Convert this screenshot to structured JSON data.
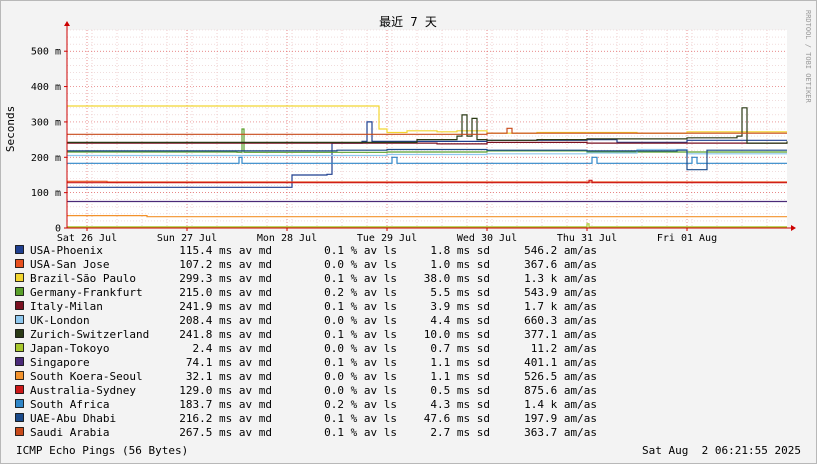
{
  "chart_data": {
    "type": "line",
    "title": "最近 7 天",
    "ylabel": "Seconds",
    "watermark": "RRDTOOL / TOBI OETIKER",
    "ylim": [
      0,
      0.56
    ],
    "yticks": [
      {
        "v": 0,
        "label": "0"
      },
      {
        "v": 0.1,
        "label": "100 m"
      },
      {
        "v": 0.2,
        "label": "200 m"
      },
      {
        "v": 0.3,
        "label": "300 m"
      },
      {
        "v": 0.4,
        "label": "400 m"
      },
      {
        "v": 0.5,
        "label": "500 m"
      }
    ],
    "xlim": [
      -0.2,
      7.0
    ],
    "xticks": [
      {
        "v": 0,
        "label": "Sat 26 Jul"
      },
      {
        "v": 1,
        "label": "Sun 27 Jul"
      },
      {
        "v": 2,
        "label": "Mon 28 Jul"
      },
      {
        "v": 3,
        "label": "Tue 29 Jul"
      },
      {
        "v": 4,
        "label": "Wed 30 Jul"
      },
      {
        "v": 5,
        "label": "Thu 31 Jul"
      },
      {
        "v": 6,
        "label": "Fri 01 Aug"
      }
    ],
    "grid": true,
    "series": [
      {
        "name": "USA-Phoenix",
        "color": "#1f3f8f",
        "avg": "115.4 ms av md",
        "loss": "0.1 % av ls",
        "sd": "1.8 ms sd",
        "am": "546.2   am/as",
        "points": [
          [
            -0.2,
            0.115
          ],
          [
            2.0,
            0.115
          ],
          [
            2.05,
            0.15
          ],
          [
            2.4,
            0.152
          ],
          [
            2.45,
            0.24
          ],
          [
            2.75,
            0.245
          ],
          [
            2.8,
            0.3
          ],
          [
            2.85,
            0.245
          ],
          [
            4.0,
            0.248
          ],
          [
            5.0,
            0.25
          ],
          [
            5.3,
            0.242
          ],
          [
            6.0,
            0.248
          ],
          [
            7.0,
            0.248
          ]
        ]
      },
      {
        "name": "USA-San Jose",
        "color": "#e8501e",
        "avg": "107.2 ms av md",
        "loss": "0.0 % av ls",
        "sd": "1.0 ms sd",
        "am": "367.6   am/as",
        "points": [
          [
            -0.2,
            0.132
          ],
          [
            0.2,
            0.13
          ],
          [
            7.0,
            0.13
          ]
        ]
      },
      {
        "name": "Brazil-São Paulo",
        "color": "#f2d530",
        "avg": "299.3 ms av md",
        "loss": "0.1 % av ls",
        "sd": "38.0 ms sd",
        "am": "1.3 k am/as",
        "points": [
          [
            -0.2,
            0.345
          ],
          [
            2.9,
            0.345
          ],
          [
            2.92,
            0.28
          ],
          [
            3.0,
            0.27
          ],
          [
            3.2,
            0.275
          ],
          [
            3.5,
            0.272
          ],
          [
            3.7,
            0.275
          ],
          [
            4.0,
            0.268
          ],
          [
            4.5,
            0.27
          ],
          [
            5.0,
            0.27
          ],
          [
            5.5,
            0.268
          ],
          [
            6.0,
            0.272
          ],
          [
            7.0,
            0.272
          ]
        ]
      },
      {
        "name": "Germany-Frankfurt",
        "color": "#5aa02c",
        "avg": "215.0 ms av md",
        "loss": "0.2 % av ls",
        "sd": "5.5 ms sd",
        "am": "543.9   am/as",
        "points": [
          [
            -0.2,
            0.215
          ],
          [
            1.5,
            0.214
          ],
          [
            1.55,
            0.28
          ],
          [
            1.57,
            0.214
          ],
          [
            3.0,
            0.215
          ],
          [
            4.0,
            0.218
          ],
          [
            5.0,
            0.215
          ],
          [
            6.0,
            0.215
          ],
          [
            7.0,
            0.215
          ]
        ]
      },
      {
        "name": "Italy-Milan",
        "color": "#7a1020",
        "avg": "241.9 ms av md",
        "loss": "0.1 % av ls",
        "sd": "3.9 ms sd",
        "am": "1.7 k am/as",
        "points": [
          [
            -0.2,
            0.24
          ],
          [
            3.0,
            0.24
          ],
          [
            3.5,
            0.238
          ],
          [
            4.0,
            0.242
          ],
          [
            5.0,
            0.24
          ],
          [
            6.0,
            0.24
          ],
          [
            7.0,
            0.24
          ]
        ]
      },
      {
        "name": "UK-London",
        "color": "#8fc8ef",
        "avg": "208.4 ms av md",
        "loss": "0.0 % av ls",
        "sd": "4.4 ms sd",
        "am": "660.3   am/as",
        "points": [
          [
            -0.2,
            0.205
          ],
          [
            2.0,
            0.205
          ],
          [
            3.0,
            0.208
          ],
          [
            4.0,
            0.21
          ],
          [
            5.0,
            0.212
          ],
          [
            5.5,
            0.222
          ],
          [
            6.0,
            0.21
          ],
          [
            7.0,
            0.21
          ]
        ]
      },
      {
        "name": "Zurich-Switzerland",
        "color": "#2b3a16",
        "avg": "241.8 ms av md",
        "loss": "0.1 % av ls",
        "sd": "10.0 ms sd",
        "am": "377.1   am/as",
        "points": [
          [
            -0.2,
            0.242
          ],
          [
            2.9,
            0.242
          ],
          [
            3.3,
            0.25
          ],
          [
            3.7,
            0.26
          ],
          [
            3.75,
            0.32
          ],
          [
            3.8,
            0.26
          ],
          [
            3.85,
            0.31
          ],
          [
            3.9,
            0.25
          ],
          [
            4.0,
            0.248
          ],
          [
            4.5,
            0.25
          ],
          [
            5.0,
            0.252
          ],
          [
            6.0,
            0.255
          ],
          [
            6.5,
            0.26
          ],
          [
            6.55,
            0.34
          ],
          [
            6.6,
            0.24
          ],
          [
            7.0,
            0.245
          ]
        ]
      },
      {
        "name": "Japan-Tokoyo",
        "color": "#a8c82e",
        "avg": "2.4 ms av md",
        "loss": "0.0 % av ls",
        "sd": "0.7 ms sd",
        "am": "11.2   am/as",
        "points": [
          [
            -0.2,
            0.003
          ],
          [
            4.95,
            0.003
          ],
          [
            5.0,
            0.012
          ],
          [
            5.02,
            0.003
          ],
          [
            7.0,
            0.003
          ]
        ]
      },
      {
        "name": "Singapore",
        "color": "#4a2a78",
        "avg": "74.1 ms av md",
        "loss": "0.1 % av ls",
        "sd": "1.1 ms sd",
        "am": "401.1   am/as",
        "points": [
          [
            -0.2,
            0.075
          ],
          [
            7.0,
            0.075
          ]
        ]
      },
      {
        "name": "South Koera-Seoul",
        "color": "#f2922c",
        "avg": "32.1 ms av md",
        "loss": "0.0 % av ls",
        "sd": "1.1 ms sd",
        "am": "526.5   am/as",
        "points": [
          [
            -0.2,
            0.035
          ],
          [
            0.5,
            0.035
          ],
          [
            0.6,
            0.032
          ],
          [
            7.0,
            0.032
          ]
        ]
      },
      {
        "name": "Australia-Sydney",
        "color": "#cc1818",
        "avg": "129.0 ms av md",
        "loss": "0.0 % av ls",
        "sd": "0.5 ms sd",
        "am": "875.6   am/as",
        "points": [
          [
            -0.2,
            0.128
          ],
          [
            5.0,
            0.128
          ],
          [
            5.02,
            0.135
          ],
          [
            5.05,
            0.128
          ],
          [
            7.0,
            0.128
          ]
        ]
      },
      {
        "name": "South Africa",
        "color": "#2f86c8",
        "avg": "183.7 ms av md",
        "loss": "0.2 % av ls",
        "sd": "4.3 ms sd",
        "am": "1.4 k am/as",
        "points": [
          [
            -0.2,
            0.183
          ],
          [
            1.5,
            0.183
          ],
          [
            1.52,
            0.2
          ],
          [
            1.55,
            0.183
          ],
          [
            2.0,
            0.183
          ],
          [
            3.0,
            0.183
          ],
          [
            3.05,
            0.2
          ],
          [
            3.1,
            0.183
          ],
          [
            5.0,
            0.183
          ],
          [
            5.05,
            0.2
          ],
          [
            5.1,
            0.183
          ],
          [
            6.0,
            0.183
          ],
          [
            6.05,
            0.2
          ],
          [
            6.1,
            0.183
          ],
          [
            7.0,
            0.183
          ]
        ]
      },
      {
        "name": "UAE-Abu Dhabi",
        "color": "#1a4a8a",
        "avg": "216.2 ms av md",
        "loss": "0.1 % av ls",
        "sd": "47.6 ms sd",
        "am": "197.9   am/as",
        "points": [
          [
            -0.2,
            0.218
          ],
          [
            2.0,
            0.218
          ],
          [
            2.5,
            0.22
          ],
          [
            3.0,
            0.222
          ],
          [
            4.0,
            0.22
          ],
          [
            5.0,
            0.218
          ],
          [
            5.9,
            0.22
          ],
          [
            6.0,
            0.165
          ],
          [
            6.15,
            0.165
          ],
          [
            6.2,
            0.22
          ],
          [
            7.0,
            0.22
          ]
        ]
      },
      {
        "name": "Saudi Arabia",
        "color": "#c84a1a",
        "avg": "267.5 ms av md",
        "loss": "0.1 % av ls",
        "sd": "2.7 ms sd",
        "am": "363.7   am/as",
        "points": [
          [
            -0.2,
            0.265
          ],
          [
            3.0,
            0.265
          ],
          [
            4.0,
            0.268
          ],
          [
            4.2,
            0.282
          ],
          [
            4.25,
            0.268
          ],
          [
            5.0,
            0.268
          ],
          [
            6.0,
            0.268
          ],
          [
            7.0,
            0.268
          ]
        ]
      }
    ]
  },
  "footer": {
    "left": "ICMP Echo Pings (56 Bytes)",
    "right": "Sat Aug  2 06:21:55 2025"
  }
}
